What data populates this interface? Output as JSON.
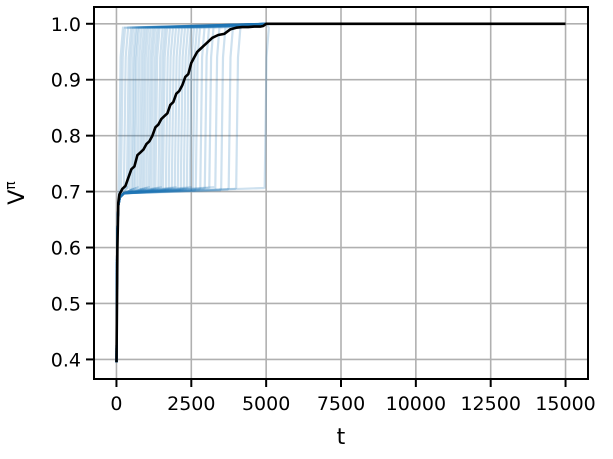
{
  "chart_data": {
    "type": "line",
    "title": "",
    "xlabel": "t",
    "ylabel": "V^π",
    "ylabel_base": "V",
    "ylabel_sup": "π",
    "xlim": [
      -750,
      15750
    ],
    "ylim": [
      0.365,
      1.03
    ],
    "xticks": [
      0,
      2500,
      5000,
      7500,
      10000,
      12500,
      15000
    ],
    "xtick_labels": [
      "0",
      "2500",
      "5000",
      "7500",
      "10000",
      "12500",
      "15000"
    ],
    "yticks": [
      0.4,
      0.5,
      0.6,
      0.7,
      0.8,
      0.9,
      1.0
    ],
    "ytick_labels": [
      "0.4",
      "0.5",
      "0.6",
      "0.7",
      "0.8",
      "0.9",
      "1.0"
    ],
    "grid": true,
    "legend": "none",
    "colors": {
      "runs": "#1f77b4",
      "mean": "#000000",
      "grid": "#b0b0b0"
    },
    "runs": {
      "description_units": "individual runs, jump time t from plateau ~0.70 to 1.0",
      "start_value": 0.395,
      "plateau_value": 0.702,
      "final_value": 1.0,
      "end_t": 5000,
      "jump_times": [
        80,
        150,
        250,
        350,
        420,
        500,
        560,
        620,
        700,
        780,
        850,
        920,
        1000,
        1080,
        1150,
        1230,
        1300,
        1400,
        1480,
        1550,
        1650,
        1750,
        1850,
        1950,
        2050,
        2150,
        2250,
        2350,
        2450,
        2550,
        2650,
        2800,
        2950,
        3100,
        3300,
        3500,
        3750,
        4000,
        4950
      ]
    },
    "series": [
      {
        "name": "",
        "x": [
          0,
          30,
          60,
          100,
          150,
          200,
          300,
          400,
          500,
          600,
          700,
          800,
          900,
          1000,
          1100,
          1200,
          1300,
          1400,
          1500,
          1600,
          1700,
          1800,
          1900,
          2000,
          2100,
          2200,
          2300,
          2400,
          2500,
          2600,
          2700,
          2800,
          2900,
          3000,
          3200,
          3400,
          3600,
          3800,
          4000,
          4200,
          4400,
          4600,
          4800,
          4900,
          5000,
          5500,
          10000,
          15000
        ],
        "y": [
          0.395,
          0.6,
          0.68,
          0.695,
          0.7,
          0.705,
          0.71,
          0.725,
          0.74,
          0.745,
          0.765,
          0.77,
          0.775,
          0.785,
          0.79,
          0.8,
          0.815,
          0.82,
          0.83,
          0.835,
          0.84,
          0.855,
          0.86,
          0.875,
          0.88,
          0.89,
          0.905,
          0.91,
          0.93,
          0.94,
          0.95,
          0.955,
          0.96,
          0.965,
          0.975,
          0.98,
          0.982,
          0.99,
          0.993,
          0.994,
          0.994,
          0.995,
          0.995,
          0.996,
          1.0,
          1.0,
          1.0,
          1.0
        ]
      }
    ]
  }
}
